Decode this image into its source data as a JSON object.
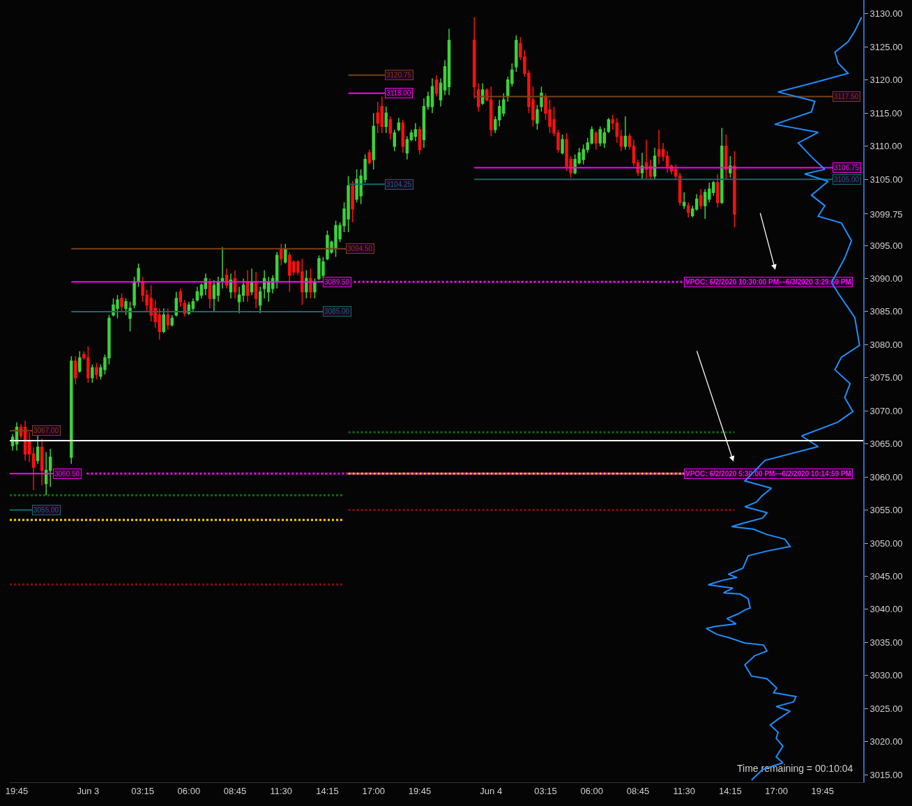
{
  "chart_data": {
    "type": "candlestick",
    "grid": false,
    "xlim": [
      "2020-06-02T19:20",
      "2020-06-04T22:10"
    ],
    "xticks": [
      {
        "value": "2020-06-02T19:45",
        "label": "19:45"
      },
      {
        "value": "2020-06-03T00:00",
        "label": "Jun 3"
      },
      {
        "value": "2020-06-03T03:15",
        "label": "03:15"
      },
      {
        "value": "2020-06-03T06:00",
        "label": "06:00"
      },
      {
        "value": "2020-06-03T08:45",
        "label": "08:45"
      },
      {
        "value": "2020-06-03T11:30",
        "label": "11:30"
      },
      {
        "value": "2020-06-03T14:15",
        "label": "14:15"
      },
      {
        "value": "2020-06-03T17:00",
        "label": "17:00"
      },
      {
        "value": "2020-06-03T19:45",
        "label": "19:45"
      },
      {
        "value": "2020-06-04T00:00",
        "label": "Jun 4"
      },
      {
        "value": "2020-06-04T03:15",
        "label": "03:15"
      },
      {
        "value": "2020-06-04T06:00",
        "label": "06:00"
      },
      {
        "value": "2020-06-04T08:45",
        "label": "08:45"
      },
      {
        "value": "2020-06-04T11:30",
        "label": "11:30"
      },
      {
        "value": "2020-06-04T14:15",
        "label": "14:15"
      },
      {
        "value": "2020-06-04T17:00",
        "label": "17:00"
      },
      {
        "value": "2020-06-04T19:45",
        "label": "19:45"
      }
    ],
    "ylim": [
      3013.85,
      3132.1
    ],
    "yticks": [
      {
        "value": 3015,
        "label": "3015.00"
      },
      {
        "value": 3020,
        "label": "3020.00"
      },
      {
        "value": 3025,
        "label": "3025.00"
      },
      {
        "value": 3030,
        "label": "3030.00"
      },
      {
        "value": 3035,
        "label": "3035.00"
      },
      {
        "value": 3040,
        "label": "3040.00"
      },
      {
        "value": 3045,
        "label": "3045.00"
      },
      {
        "value": 3050,
        "label": "3050.00"
      },
      {
        "value": 3055,
        "label": "3055.00"
      },
      {
        "value": 3060,
        "label": "3060.00"
      },
      {
        "value": 3065,
        "label": "3065.00"
      },
      {
        "value": 3070,
        "label": "3070.00"
      },
      {
        "value": 3075,
        "label": "3075.00"
      },
      {
        "value": 3080,
        "label": "3080.00"
      },
      {
        "value": 3085,
        "label": "3085.00"
      },
      {
        "value": 3090,
        "label": "3090.00"
      },
      {
        "value": 3095,
        "label": "3095.00"
      },
      {
        "value": 3099.75,
        "label": "3099.75"
      },
      {
        "value": 3105,
        "label": "3105.00"
      },
      {
        "value": 3110,
        "label": "3110.00"
      },
      {
        "value": 3115,
        "label": "3115.00"
      },
      {
        "value": 3120,
        "label": "3120.00"
      },
      {
        "value": 3125,
        "label": "3125.00"
      },
      {
        "value": 3130,
        "label": "3130.00"
      }
    ],
    "ref_lines": [
      {
        "axis": "y",
        "value": 3065.5,
        "color": "#ffffff",
        "line_style": "solid"
      }
    ],
    "annotations": [
      {
        "text": "3067.00",
        "x": "2020-06-02T20:40",
        "y": 3067
      },
      {
        "text": "3060.50",
        "x": "2020-06-02T21:55",
        "y": 3060.5
      },
      {
        "text": "3055.00",
        "x": "2020-06-02T20:40",
        "y": 3055
      },
      {
        "text": "3094.50",
        "x": "2020-06-03T15:22",
        "y": 3094.5
      },
      {
        "text": "3089.50",
        "x": "2020-06-03T14:00",
        "y": 3089.5
      },
      {
        "text": "3085.00",
        "x": "2020-06-03T14:00",
        "y": 3085
      },
      {
        "text": "3120.75",
        "x": "2020-06-03T17:40",
        "y": 3120.75
      },
      {
        "text": "3118.00",
        "x": "2020-06-03T17:40",
        "y": 3118
      },
      {
        "text": "3104.25",
        "x": "2020-06-03T17:40",
        "y": 3104.25
      },
      {
        "text": "3117.50",
        "x": "2020-06-04T20:20",
        "y": 3117.5
      },
      {
        "text": "3106.75",
        "x": "2020-06-04T20:20",
        "y": 3106.75
      },
      {
        "text": "3105.00",
        "x": "2020-06-04T20:20",
        "y": 3105
      },
      {
        "text": "VPOC: 6/2/2020 10:30:00 PM—6/3/2020 3:29:59 PM",
        "x": "2020-06-04T11:30",
        "y": 3089.5
      },
      {
        "text": "VPOC: 6/2/2020 5:30:00 PM—6/2/2020 10:14:59 PM",
        "x": "2020-06-04T11:30",
        "y": 3060.5
      },
      "Time remaining = 00:10:04"
    ],
    "series": [
      {
        "type": "line",
        "x": [
          "2020-06-02T19:20",
          "2020-06-02T20:40"
        ],
        "values": [
          3067,
          3067
        ],
        "color": "#7a4216",
        "line_style": "solid"
      },
      {
        "type": "line",
        "x": [
          "2020-06-02T19:20",
          "2020-06-02T21:55"
        ],
        "values": [
          3060.5,
          3060.5
        ],
        "color": "#ff00ff",
        "line_style": "solid"
      },
      {
        "type": "line",
        "x": [
          "2020-06-02T19:20",
          "2020-06-02T20:40"
        ],
        "values": [
          3055,
          3055
        ],
        "color": "#0e6e6e",
        "line_style": "solid"
      },
      {
        "type": "line",
        "x": [
          "2020-06-02T23:00",
          "2020-06-03T15:22"
        ],
        "values": [
          3094.5,
          3094.5
        ],
        "color": "#7a4216",
        "line_style": "solid"
      },
      {
        "type": "line",
        "x": [
          "2020-06-02T23:00",
          "2020-06-03T14:00"
        ],
        "values": [
          3089.5,
          3089.5
        ],
        "color": "#ff00ff",
        "line_style": "solid"
      },
      {
        "type": "line",
        "x": [
          "2020-06-02T23:00",
          "2020-06-03T14:00"
        ],
        "values": [
          3085,
          3085
        ],
        "color": "#0e6e6e",
        "line_style": "solid"
      },
      {
        "type": "line",
        "x": [
          "2020-06-03T15:30",
          "2020-06-03T17:40"
        ],
        "values": [
          3120.75,
          3120.75
        ],
        "color": "#7a4216",
        "line_style": "solid"
      },
      {
        "type": "line",
        "x": [
          "2020-06-03T15:30",
          "2020-06-03T17:40"
        ],
        "values": [
          3118,
          3118
        ],
        "color": "#ff00ff",
        "line_style": "solid"
      },
      {
        "type": "line",
        "x": [
          "2020-06-03T15:30",
          "2020-06-03T17:40"
        ],
        "values": [
          3104.25,
          3104.25
        ],
        "color": "#0e6e6e",
        "line_style": "solid"
      },
      {
        "type": "line",
        "x": [
          "2020-06-03T23:00",
          "2020-06-04T20:20"
        ],
        "values": [
          3117.5,
          3117.5
        ],
        "color": "#7a4216",
        "line_style": "solid"
      },
      {
        "type": "line",
        "x": [
          "2020-06-03T23:00",
          "2020-06-04T20:20"
        ],
        "values": [
          3106.75,
          3106.75
        ],
        "color": "#ff00ff",
        "line_style": "solid"
      },
      {
        "type": "line",
        "x": [
          "2020-06-03T23:00",
          "2020-06-04T20:20"
        ],
        "values": [
          3105,
          3105
        ],
        "color": "#0e6e6e",
        "line_style": "solid"
      },
      {
        "type": "line",
        "x": [
          "2020-06-03T15:50",
          "2020-06-04T11:30"
        ],
        "values": [
          3089.5,
          3089.5
        ],
        "color": "#ff00ff",
        "line_style": "dotted"
      },
      {
        "type": "line",
        "x": [
          "2020-06-02T23:55",
          "2020-06-04T11:30"
        ],
        "values": [
          3060.5,
          3060.5
        ],
        "color": "#ff00ff",
        "line_style": "dotted"
      },
      {
        "type": "line",
        "x": [
          "2020-06-03T15:30",
          "2020-06-04T11:30"
        ],
        "values": [
          3060.5,
          3060.5
        ],
        "color": "#ffcc00",
        "line_style": "dotted"
      },
      {
        "type": "line",
        "x": [
          "2020-06-02T19:20",
          "2020-06-03T15:15"
        ],
        "values": [
          3053.5,
          3053.5
        ],
        "color": "#ffcc00",
        "line_style": "dotted"
      },
      {
        "type": "line",
        "x": [
          "2020-06-02T19:20",
          "2020-06-03T15:15"
        ],
        "values": [
          3057.25,
          3057.25
        ],
        "color": "#0b6e0b",
        "line_style": "dotted"
      },
      {
        "type": "line",
        "x": [
          "2020-06-03T15:30",
          "2020-06-04T14:30"
        ],
        "values": [
          3066.75,
          3066.75
        ],
        "color": "#0b6e0b",
        "line_style": "dotted"
      },
      {
        "type": "line",
        "x": [
          "2020-06-02T19:20",
          "2020-06-03T15:15"
        ],
        "values": [
          3043.75,
          3043.75
        ],
        "color": "#8b0a0a",
        "line_style": "dotted"
      },
      {
        "type": "line",
        "x": [
          "2020-06-03T15:30",
          "2020-06-04T14:30"
        ],
        "values": [
          3055,
          3055
        ],
        "color": "#8b0a0a",
        "line_style": "dotted"
      },
      {
        "type": "line",
        "color": "#1e8fff",
        "line_style": "solid",
        "x": [
          "2020-06-04T15:31",
          "2020-06-04T16:11",
          "2020-06-04T17:23",
          "2020-06-04T16:59",
          "2020-06-04T17:23",
          "2020-06-04T16:59",
          "2020-06-04T17:06",
          "2020-06-04T16:38",
          "2020-06-04T17:06",
          "2020-06-04T17:49",
          "2020-06-04T16:59",
          "2020-06-04T18:01",
          "2020-06-04T18:10",
          "2020-06-04T16:50",
          "2020-06-04T17:01",
          "2020-06-04T16:26",
          "2020-06-04T15:31",
          "2020-06-04T15:07",
          "2020-06-04T15:43",
          "2020-06-04T16:26",
          "2020-06-04T16:14",
          "2020-06-04T15:07",
          "2020-06-04T14:12",
          "2020-06-04T13:27",
          "2020-06-04T12:49",
          "2020-06-04T13:20",
          "2020-06-04T14:36",
          "2020-06-04T14:03",
          "2020-06-04T14:43",
          "2020-06-04T15:07",
          "2020-06-04T15:26",
          "2020-06-04T15:19",
          "2020-06-04T14:50",
          "2020-06-04T13:51",
          "2020-06-04T14:24",
          "2020-06-04T12:56",
          "2020-06-04T13:49",
          "2020-06-04T14:39",
          "2020-06-04T14:08",
          "2020-06-04T15:00",
          "2020-06-04T15:12",
          "2020-06-04T15:19",
          "2020-06-04T16:26",
          "2020-06-04T17:49",
          "2020-06-04T17:30",
          "2020-06-04T16:26",
          "2020-06-04T15:38",
          "2020-06-04T14:20",
          "2020-06-04T15:00",
          "2020-06-04T16:11",
          "2020-06-04T16:26",
          "2020-06-04T15:07",
          "2020-06-04T15:48",
          "2020-06-04T16:07",
          "2020-06-04T16:42",
          "2020-06-04T15:07",
          "2020-06-04T16:19",
          "2020-06-04T19:29",
          "2020-06-04T18:30",
          "2020-06-04T20:40",
          "2020-06-04T21:33",
          "2020-06-04T21:04",
          "2020-06-04T21:23",
          "2020-06-04T20:29",
          "2020-06-04T20:52",
          "2020-06-04T21:57",
          "2020-06-04T21:40",
          "2020-06-04T20:40",
          "2020-06-04T20:17",
          "2020-06-04T21:04",
          "2020-06-04T21:28",
          "2020-06-04T20:52",
          "2020-06-04T19:29",
          "2020-06-04T19:53",
          "2020-06-04T19:05",
          "2020-06-04T20:05",
          "2020-06-04T18:41",
          "2020-06-04T19:53",
          "2020-06-04T19:05",
          "2020-06-04T18:18",
          "2020-06-04T19:29",
          "2020-06-04T16:54",
          "2020-06-04T19:05",
          "2020-06-04T19:17",
          "2020-06-04T17:06",
          "2020-06-04T19:05",
          "2020-06-04T21:16",
          "2020-06-04T20:40",
          "2020-06-04T20:29",
          "2020-06-04T21:16",
          "2020-06-04T21:40",
          "2020-06-04T22:04"
        ],
        "values": [
          3014.2,
          3015.8,
          3016.8,
          3017.7,
          3019.3,
          3020.5,
          3021.4,
          3022.5,
          3023.4,
          3024.6,
          3025.3,
          3026.0,
          3026.8,
          3027.4,
          3028.1,
          3029.5,
          3029.9,
          3031.6,
          3033.0,
          3033.7,
          3034.6,
          3034.9,
          3035.7,
          3036.2,
          3037.1,
          3037.4,
          3037.8,
          3038.6,
          3039.3,
          3039.9,
          3040.2,
          3041.6,
          3042.3,
          3042.5,
          3043.2,
          3043.7,
          3044.4,
          3044.8,
          3045.3,
          3046.2,
          3047.4,
          3048.1,
          3048.8,
          3049.5,
          3050.6,
          3051.3,
          3052.1,
          3052.5,
          3053.0,
          3053.8,
          3054.6,
          3055.5,
          3056.2,
          3057.1,
          3058.3,
          3059.4,
          3062.5,
          3064.6,
          3066.2,
          3068.3,
          3069.9,
          3072.0,
          3074.1,
          3076.2,
          3078.1,
          3079.9,
          3084.1,
          3087.8,
          3089.4,
          3093.1,
          3095.7,
          3098.4,
          3099.4,
          3101.0,
          3102.6,
          3104.7,
          3105.8,
          3106.5,
          3108.4,
          3110.5,
          3112.1,
          3113.3,
          3115.2,
          3116.8,
          3118.2,
          3119.5,
          3121.0,
          3122.6,
          3124.2,
          3125.8,
          3127.4,
          3129.5
        ]
      },
      {
        "type": "candlestick",
        "colors": [
          "#3cd23c",
          "#3cd23c",
          "#ff1010",
          "#ff1010",
          "#ff1010",
          "#ff1010",
          "#3cd23c",
          "#ff1010",
          "#3cd23c",
          "#3cd23c",
          "#3cd23c",
          "#ff1010",
          "#3cd23c",
          "#ff1010",
          "#ff1010",
          "#3cd23c",
          "#ff1010",
          "#3cd23c",
          "#3cd23c",
          "#3cd23c",
          "#3cd23c",
          "#3cd23c",
          "#ff1010",
          "#3cd23c",
          "#3cd23c",
          "#3cd23c",
          "#3cd23c",
          "#ff1010",
          "#ff1010",
          "#ff1010",
          "#ff1010",
          "#ff1010",
          "#3cd23c",
          "#ff1010",
          "#3cd23c",
          "#3cd23c",
          "#ff1010",
          "#ff1010",
          "#3cd23c",
          "#3cd23c",
          "#3cd23c",
          "#3cd23c",
          "#3cd23c",
          "#ff1010",
          "#3cd23c",
          "#3cd23c",
          "#3cd23c",
          "#ff1010",
          "#3cd23c",
          "#ff1010",
          "#3cd23c",
          "#3cd23c",
          "#ff1010",
          "#3cd23c",
          "#ff1010",
          "#3cd23c",
          "#3cd23c",
          "#3cd23c",
          "#3cd23c",
          "#3cd23c",
          "#ff1010",
          "#3cd23c",
          "#ff1010",
          "#ff1010",
          "#ff1010",
          "#ff1010",
          "#3cd23c",
          "#ff1010",
          "#3cd23c",
          "#3cd23c",
          "#3cd23c",
          "#3cd23c",
          "#3cd23c",
          "#3cd23c",
          "#3cd23c",
          "#3cd23c",
          "#3cd23c",
          "#ff1010",
          "#3cd23c",
          "#3cd23c",
          "#3cd23c",
          "#ff1010",
          "#3cd23c",
          "#ff1010",
          "#ff1010",
          "#3cd23c",
          "#ff1010",
          "#3cd23c",
          "#3cd23c",
          "#ff1010",
          "#3cd23c",
          "#3cd23c",
          "#3cd23c",
          "#ff1010",
          "#3cd23c",
          "#3cd23c",
          "#3cd23c",
          "#ff1010",
          "#3cd23c",
          "#3cd23c",
          "#3cd23c",
          "#ff1010",
          "#ff1010",
          "#3cd23c",
          "#ff1010",
          "#ff1010",
          "#3cd23c",
          "#3cd23c",
          "#3cd23c",
          "#3cd23c",
          "#3cd23c",
          "#3cd23c",
          "#ff1010",
          "#ff1010",
          "#ff1010",
          "#ff1010",
          "#3cd23c",
          "#3cd23c",
          "#ff1010",
          "#ff1010",
          "#ff1010",
          "#ff1010",
          "#3cd23c",
          "#ff1010",
          "#ff1010",
          "#3cd23c",
          "#3cd23c",
          "#3cd23c",
          "#3cd23c",
          "#3cd23c",
          "#ff1010",
          "#3cd23c",
          "#3cd23c",
          "#3cd23c",
          "#ff1010",
          "#ff1010",
          "#ff1010",
          "#3cd23c",
          "#ff1010",
          "#ff1010",
          "#ff1010",
          "#3cd23c",
          "#ff1010",
          "#ff1010",
          "#3cd23c",
          "#ff1010",
          "#ff1010",
          "#ff1010",
          "#ff1010",
          "#ff1010",
          "#ff1010",
          "#3cd23c",
          "#ff1010",
          "#3cd23c",
          "#3cd23c",
          "#ff1010",
          "#3cd23c",
          "#3cd23c",
          "#3cd23c",
          "#ff1010",
          "#3cd23c",
          "#ff1010",
          "#3cd23c",
          "#ff1010"
        ],
        "x": [
          "2020-06-02T19:30",
          "2020-06-02T19:45",
          "2020-06-02T20:00",
          "2020-06-02T20:15",
          "2020-06-02T20:30",
          "2020-06-02T20:45",
          "2020-06-02T21:00",
          "2020-06-02T21:15",
          "2020-06-02T21:30",
          "2020-06-02T21:45",
          "2020-06-02T23:00",
          "2020-06-02T23:15",
          "2020-06-02T23:30",
          "2020-06-02T23:45",
          "2020-06-03T00:00",
          "2020-06-03T00:15",
          "2020-06-03T00:30",
          "2020-06-03T00:45",
          "2020-06-03T01:00",
          "2020-06-03T01:15",
          "2020-06-03T01:30",
          "2020-06-03T01:45",
          "2020-06-03T02:00",
          "2020-06-03T02:15",
          "2020-06-03T02:30",
          "2020-06-03T02:45",
          "2020-06-03T03:00",
          "2020-06-03T03:15",
          "2020-06-03T03:30",
          "2020-06-03T03:45",
          "2020-06-03T04:00",
          "2020-06-03T04:15",
          "2020-06-03T04:30",
          "2020-06-03T04:45",
          "2020-06-03T05:00",
          "2020-06-03T05:15",
          "2020-06-03T05:30",
          "2020-06-03T05:45",
          "2020-06-03T06:00",
          "2020-06-03T06:15",
          "2020-06-03T06:30",
          "2020-06-03T06:45",
          "2020-06-03T07:00",
          "2020-06-03T07:15",
          "2020-06-03T07:30",
          "2020-06-03T07:45",
          "2020-06-03T08:00",
          "2020-06-03T08:15",
          "2020-06-03T08:30",
          "2020-06-03T08:45",
          "2020-06-03T09:00",
          "2020-06-03T09:15",
          "2020-06-03T09:30",
          "2020-06-03T09:45",
          "2020-06-03T10:00",
          "2020-06-03T10:15",
          "2020-06-03T10:30",
          "2020-06-03T10:45",
          "2020-06-03T11:00",
          "2020-06-03T11:15",
          "2020-06-03T11:30",
          "2020-06-03T11:45",
          "2020-06-03T12:00",
          "2020-06-03T12:15",
          "2020-06-03T12:30",
          "2020-06-03T12:45",
          "2020-06-03T13:00",
          "2020-06-03T13:15",
          "2020-06-03T13:30",
          "2020-06-03T13:45",
          "2020-06-03T14:00",
          "2020-06-03T14:15",
          "2020-06-03T14:30",
          "2020-06-03T14:45",
          "2020-06-03T15:00",
          "2020-06-03T15:15",
          "2020-06-03T15:30",
          "2020-06-03T15:45",
          "2020-06-03T16:00",
          "2020-06-03T16:15",
          "2020-06-03T16:30",
          "2020-06-03T16:45",
          "2020-06-03T17:00",
          "2020-06-03T17:15",
          "2020-06-03T17:30",
          "2020-06-03T17:45",
          "2020-06-03T18:00",
          "2020-06-03T18:15",
          "2020-06-03T18:30",
          "2020-06-03T18:45",
          "2020-06-03T19:00",
          "2020-06-03T19:15",
          "2020-06-03T19:30",
          "2020-06-03T19:45",
          "2020-06-03T20:00",
          "2020-06-03T20:15",
          "2020-06-03T20:30",
          "2020-06-03T20:45",
          "2020-06-03T21:00",
          "2020-06-03T21:15",
          "2020-06-03T21:30",
          "2020-06-03T23:00",
          "2020-06-03T23:15",
          "2020-06-03T23:30",
          "2020-06-03T23:45",
          "2020-06-04T00:00",
          "2020-06-04T00:15",
          "2020-06-04T00:30",
          "2020-06-04T00:45",
          "2020-06-04T01:00",
          "2020-06-04T01:15",
          "2020-06-04T01:30",
          "2020-06-04T01:45",
          "2020-06-04T02:00",
          "2020-06-04T02:15",
          "2020-06-04T02:30",
          "2020-06-04T02:45",
          "2020-06-04T03:00",
          "2020-06-04T03:15",
          "2020-06-04T03:30",
          "2020-06-04T03:45",
          "2020-06-04T04:00",
          "2020-06-04T04:15",
          "2020-06-04T04:30",
          "2020-06-04T04:45",
          "2020-06-04T05:00",
          "2020-06-04T05:15",
          "2020-06-04T05:30",
          "2020-06-04T05:45",
          "2020-06-04T06:00",
          "2020-06-04T06:15",
          "2020-06-04T06:30",
          "2020-06-04T06:45",
          "2020-06-04T07:00",
          "2020-06-04T07:15",
          "2020-06-04T07:30",
          "2020-06-04T07:45",
          "2020-06-04T08:00",
          "2020-06-04T08:15",
          "2020-06-04T08:30",
          "2020-06-04T08:45",
          "2020-06-04T09:00",
          "2020-06-04T09:15",
          "2020-06-04T09:30",
          "2020-06-04T09:45",
          "2020-06-04T10:00",
          "2020-06-04T10:15",
          "2020-06-04T10:30",
          "2020-06-04T10:45",
          "2020-06-04T11:00",
          "2020-06-04T11:15",
          "2020-06-04T11:30",
          "2020-06-04T11:45",
          "2020-06-04T12:00",
          "2020-06-04T12:15",
          "2020-06-04T12:30",
          "2020-06-04T12:45",
          "2020-06-04T13:00",
          "2020-06-04T13:15",
          "2020-06-04T13:30",
          "2020-06-04T13:45",
          "2020-06-04T14:00",
          "2020-06-04T14:15",
          "2020-06-04T14:30"
        ],
        "ohlc": [
          [
            3064.75,
            3066.5,
            3064,
            3066
          ],
          [
            3065,
            3068.25,
            3064,
            3067.5
          ],
          [
            3067.5,
            3068,
            3065.75,
            3066.25
          ],
          [
            3067.5,
            3068.5,
            3062.5,
            3063.5
          ],
          [
            3065.5,
            3066.75,
            3062.25,
            3063.5
          ],
          [
            3063.5,
            3064.5,
            3058,
            3061.5
          ],
          [
            3062.5,
            3066.25,
            3062,
            3064.5
          ],
          [
            3064.5,
            3065.75,
            3058.75,
            3061
          ],
          [
            3059,
            3063.75,
            3057.25,
            3061
          ],
          [
            3061,
            3064.25,
            3058.5,
            3063
          ],
          [
            3063,
            3078.25,
            3062,
            3077.5
          ],
          [
            3077.5,
            3078.25,
            3074,
            3075
          ],
          [
            3076,
            3079,
            3075.75,
            3078
          ],
          [
            3078.5,
            3079,
            3077.75,
            3078
          ],
          [
            3078,
            3079.75,
            3074.25,
            3075
          ],
          [
            3075,
            3077,
            3074.25,
            3076.5
          ],
          [
            3076.5,
            3077.25,
            3074.75,
            3075.5
          ],
          [
            3075.25,
            3077,
            3074.75,
            3076.5
          ],
          [
            3076.25,
            3078.5,
            3075.5,
            3078
          ],
          [
            3078,
            3084.5,
            3077,
            3084
          ],
          [
            3084.5,
            3087,
            3084.25,
            3086
          ],
          [
            3085.5,
            3087.5,
            3084,
            3086.75
          ],
          [
            3087,
            3087.75,
            3085,
            3085.75
          ],
          [
            3085.5,
            3087,
            3084.5,
            3086.5
          ],
          [
            3084,
            3086.5,
            3082,
            3085.5
          ],
          [
            3086,
            3090.25,
            3085.5,
            3089.5
          ],
          [
            3089.5,
            3092.25,
            3088.75,
            3091.5
          ],
          [
            3089.5,
            3090.25,
            3086.5,
            3087.5
          ],
          [
            3087.5,
            3088.25,
            3085,
            3086
          ],
          [
            3087,
            3089,
            3083.5,
            3084.5
          ],
          [
            3085.5,
            3086.75,
            3082.5,
            3083.5
          ],
          [
            3084.5,
            3085.5,
            3080.75,
            3082
          ],
          [
            3082,
            3085.5,
            3081.75,
            3084.5
          ],
          [
            3084.5,
            3085.5,
            3082.25,
            3083
          ],
          [
            3083,
            3084.5,
            3082.75,
            3084
          ],
          [
            3084.5,
            3088,
            3084.25,
            3087
          ],
          [
            3088,
            3088.5,
            3085.75,
            3086.5
          ],
          [
            3086.25,
            3086.75,
            3084.25,
            3084.75
          ],
          [
            3084.75,
            3086.5,
            3084.5,
            3086
          ],
          [
            3085.5,
            3087,
            3085,
            3086.5
          ],
          [
            3086.75,
            3088.75,
            3086.5,
            3088
          ],
          [
            3087.5,
            3089.25,
            3087,
            3089
          ],
          [
            3088.5,
            3090.75,
            3087.5,
            3090
          ],
          [
            3089.5,
            3090,
            3085.5,
            3087
          ],
          [
            3087,
            3089.75,
            3085,
            3089
          ],
          [
            3087.5,
            3090.25,
            3086.5,
            3089.5
          ],
          [
            3089.5,
            3094.75,
            3088.5,
            3090
          ],
          [
            3090.5,
            3091.5,
            3088.5,
            3089
          ],
          [
            3088,
            3090.75,
            3087,
            3089.75
          ],
          [
            3090,
            3091.25,
            3087,
            3088
          ],
          [
            3086.5,
            3088.75,
            3084.75,
            3087.5
          ],
          [
            3087.5,
            3090,
            3086.5,
            3089
          ],
          [
            3089.5,
            3091.25,
            3086.5,
            3087.5
          ],
          [
            3088,
            3091.5,
            3087.5,
            3089.5
          ],
          [
            3089.5,
            3091,
            3085.5,
            3087
          ],
          [
            3086,
            3088.75,
            3084.75,
            3088
          ],
          [
            3088.5,
            3091.25,
            3087,
            3090
          ],
          [
            3088,
            3090.25,
            3086.5,
            3089.5
          ],
          [
            3088.5,
            3090.5,
            3087.75,
            3090
          ],
          [
            3089.5,
            3094,
            3088.5,
            3093.5
          ],
          [
            3094.5,
            3095.25,
            3092,
            3093
          ],
          [
            3092.5,
            3095.25,
            3092.25,
            3094.5
          ],
          [
            3093.5,
            3094,
            3088,
            3090.5
          ],
          [
            3092.5,
            3092.75,
            3090.5,
            3091
          ],
          [
            3092.5,
            3092.75,
            3090.5,
            3091
          ],
          [
            3091,
            3093,
            3086,
            3088
          ],
          [
            3088,
            3091.25,
            3087,
            3090
          ],
          [
            3090,
            3091.5,
            3087,
            3088
          ],
          [
            3088,
            3090,
            3087,
            3089.5
          ],
          [
            3090,
            3093.5,
            3089.75,
            3093
          ],
          [
            3090.5,
            3093.25,
            3090,
            3092.5
          ],
          [
            3093,
            3097.25,
            3092.75,
            3096.5
          ],
          [
            3094,
            3095.75,
            3093.75,
            3095.5
          ],
          [
            3094.5,
            3098.75,
            3093.25,
            3098
          ],
          [
            3096,
            3098.5,
            3095.5,
            3098
          ],
          [
            3098,
            3101.5,
            3097,
            3100.5
          ],
          [
            3099,
            3105.5,
            3097,
            3104
          ],
          [
            3104,
            3104.75,
            3098.5,
            3100.5
          ],
          [
            3102,
            3106.5,
            3101.5,
            3105
          ],
          [
            3102.5,
            3106.5,
            3101.25,
            3105.5
          ],
          [
            3105,
            3108.75,
            3104.5,
            3108
          ],
          [
            3109,
            3109.5,
            3107.25,
            3107.5
          ],
          [
            3108,
            3115,
            3106.5,
            3113
          ],
          [
            3115,
            3116.75,
            3112,
            3113.5
          ],
          [
            3116,
            3117.5,
            3112,
            3113
          ],
          [
            3113,
            3116,
            3112,
            3115
          ],
          [
            3114,
            3114.5,
            3111,
            3112
          ],
          [
            3110,
            3112.5,
            3109.25,
            3112
          ],
          [
            3112.5,
            3114.25,
            3112.25,
            3113.5
          ],
          [
            3113.5,
            3114,
            3109,
            3110
          ],
          [
            3109,
            3111.5,
            3108,
            3111
          ],
          [
            3111,
            3112.5,
            3110.75,
            3112
          ],
          [
            3111.5,
            3113.5,
            3110.75,
            3112.5
          ],
          [
            3112.5,
            3113,
            3108.75,
            3109.5
          ],
          [
            3111,
            3117.25,
            3109.75,
            3116
          ],
          [
            3116,
            3118.25,
            3115.5,
            3117.5
          ],
          [
            3116,
            3120.25,
            3115,
            3119
          ],
          [
            3120,
            3120.75,
            3117.5,
            3118
          ],
          [
            3117,
            3120.25,
            3116,
            3119.5
          ],
          [
            3118.5,
            3123,
            3117.75,
            3122
          ],
          [
            3119,
            3127.75,
            3117.75,
            3126
          ],
          [
            3126,
            3129.5,
            3117.25,
            3119
          ],
          [
            3118.5,
            3119.5,
            3115.25,
            3116
          ],
          [
            3116.5,
            3119.5,
            3116.25,
            3118.5
          ],
          [
            3118.5,
            3118.75,
            3116.75,
            3117
          ],
          [
            3117,
            3119,
            3111.5,
            3112.5
          ],
          [
            3112.5,
            3114.5,
            3112,
            3114
          ],
          [
            3114,
            3117,
            3113,
            3116
          ],
          [
            3115,
            3118,
            3114.5,
            3117
          ],
          [
            3117.5,
            3120.5,
            3116.75,
            3120
          ],
          [
            3119.5,
            3122.5,
            3119,
            3121.5
          ],
          [
            3122,
            3126.75,
            3121.25,
            3126
          ],
          [
            3125.5,
            3126.5,
            3123,
            3123.5
          ],
          [
            3123.5,
            3124.5,
            3120.5,
            3121
          ],
          [
            3121,
            3121.5,
            3115,
            3116
          ],
          [
            3117,
            3119,
            3113,
            3114
          ],
          [
            3113.5,
            3116.25,
            3112.5,
            3115.5
          ],
          [
            3116,
            3119,
            3115.25,
            3118
          ],
          [
            3117.5,
            3118,
            3114,
            3115
          ],
          [
            3115.5,
            3117,
            3112,
            3113
          ],
          [
            3114,
            3116,
            3111.5,
            3112
          ],
          [
            3112,
            3112.5,
            3109,
            3109.5
          ],
          [
            3109,
            3111.75,
            3108.75,
            3111
          ],
          [
            3111,
            3112,
            3106.25,
            3107
          ],
          [
            3108,
            3108.5,
            3105.25,
            3106
          ],
          [
            3106,
            3108.75,
            3105.75,
            3108
          ],
          [
            3107.5,
            3109.75,
            3107.25,
            3109
          ],
          [
            3108,
            3110.25,
            3107.25,
            3109.5
          ],
          [
            3109.5,
            3111.25,
            3109,
            3110.5
          ],
          [
            3110.5,
            3113,
            3110.25,
            3112.5
          ],
          [
            3112,
            3112.25,
            3109.5,
            3110.5
          ],
          [
            3110.5,
            3113,
            3110,
            3112.5
          ],
          [
            3110.5,
            3112.75,
            3109.75,
            3112
          ],
          [
            3112.25,
            3114.25,
            3112,
            3114
          ],
          [
            3114,
            3114.75,
            3112.5,
            3113.5
          ],
          [
            3113.5,
            3114.25,
            3110.5,
            3111.5
          ],
          [
            3111.5,
            3112.5,
            3109.25,
            3110
          ],
          [
            3110,
            3114.5,
            3109.5,
            3111.5
          ],
          [
            3111.5,
            3112,
            3109.5,
            3110
          ],
          [
            3110,
            3111,
            3107,
            3107.5
          ],
          [
            3107.5,
            3108,
            3105.5,
            3106
          ],
          [
            3106,
            3109,
            3105,
            3107
          ],
          [
            3107.5,
            3111,
            3105,
            3106.5
          ],
          [
            3107,
            3108,
            3105,
            3105.5
          ],
          [
            3105.5,
            3109.75,
            3105,
            3108.5
          ],
          [
            3109.5,
            3112.5,
            3107.25,
            3108.5
          ],
          [
            3109.5,
            3110.5,
            3107.75,
            3108.5
          ],
          [
            3108.5,
            3109.25,
            3106,
            3107
          ],
          [
            3107,
            3107.25,
            3105.75,
            3106.25
          ],
          [
            3106.5,
            3107.25,
            3105,
            3105.5
          ],
          [
            3105.5,
            3106,
            3101,
            3101.5
          ],
          [
            3101,
            3103,
            3100.5,
            3101.5
          ],
          [
            3101,
            3101.5,
            3099.25,
            3100
          ],
          [
            3099.5,
            3101,
            3099.25,
            3100.5
          ],
          [
            3100.5,
            3102.75,
            3100.25,
            3102
          ],
          [
            3102.5,
            3103.5,
            3100.5,
            3101
          ],
          [
            3101,
            3103.5,
            3099,
            3103
          ],
          [
            3102,
            3104.5,
            3101.5,
            3103.5
          ],
          [
            3103,
            3104.75,
            3102.5,
            3104.5
          ],
          [
            3104.5,
            3105.75,
            3100.75,
            3101.5
          ],
          [
            3101.5,
            3112.75,
            3101.25,
            3110
          ],
          [
            3110,
            3111.75,
            3105,
            3106.5
          ],
          [
            3106,
            3108.5,
            3105.25,
            3107
          ],
          [
            3107,
            3109.25,
            3097.75,
            3099.75
          ]
        ]
      }
    ]
  }
}
